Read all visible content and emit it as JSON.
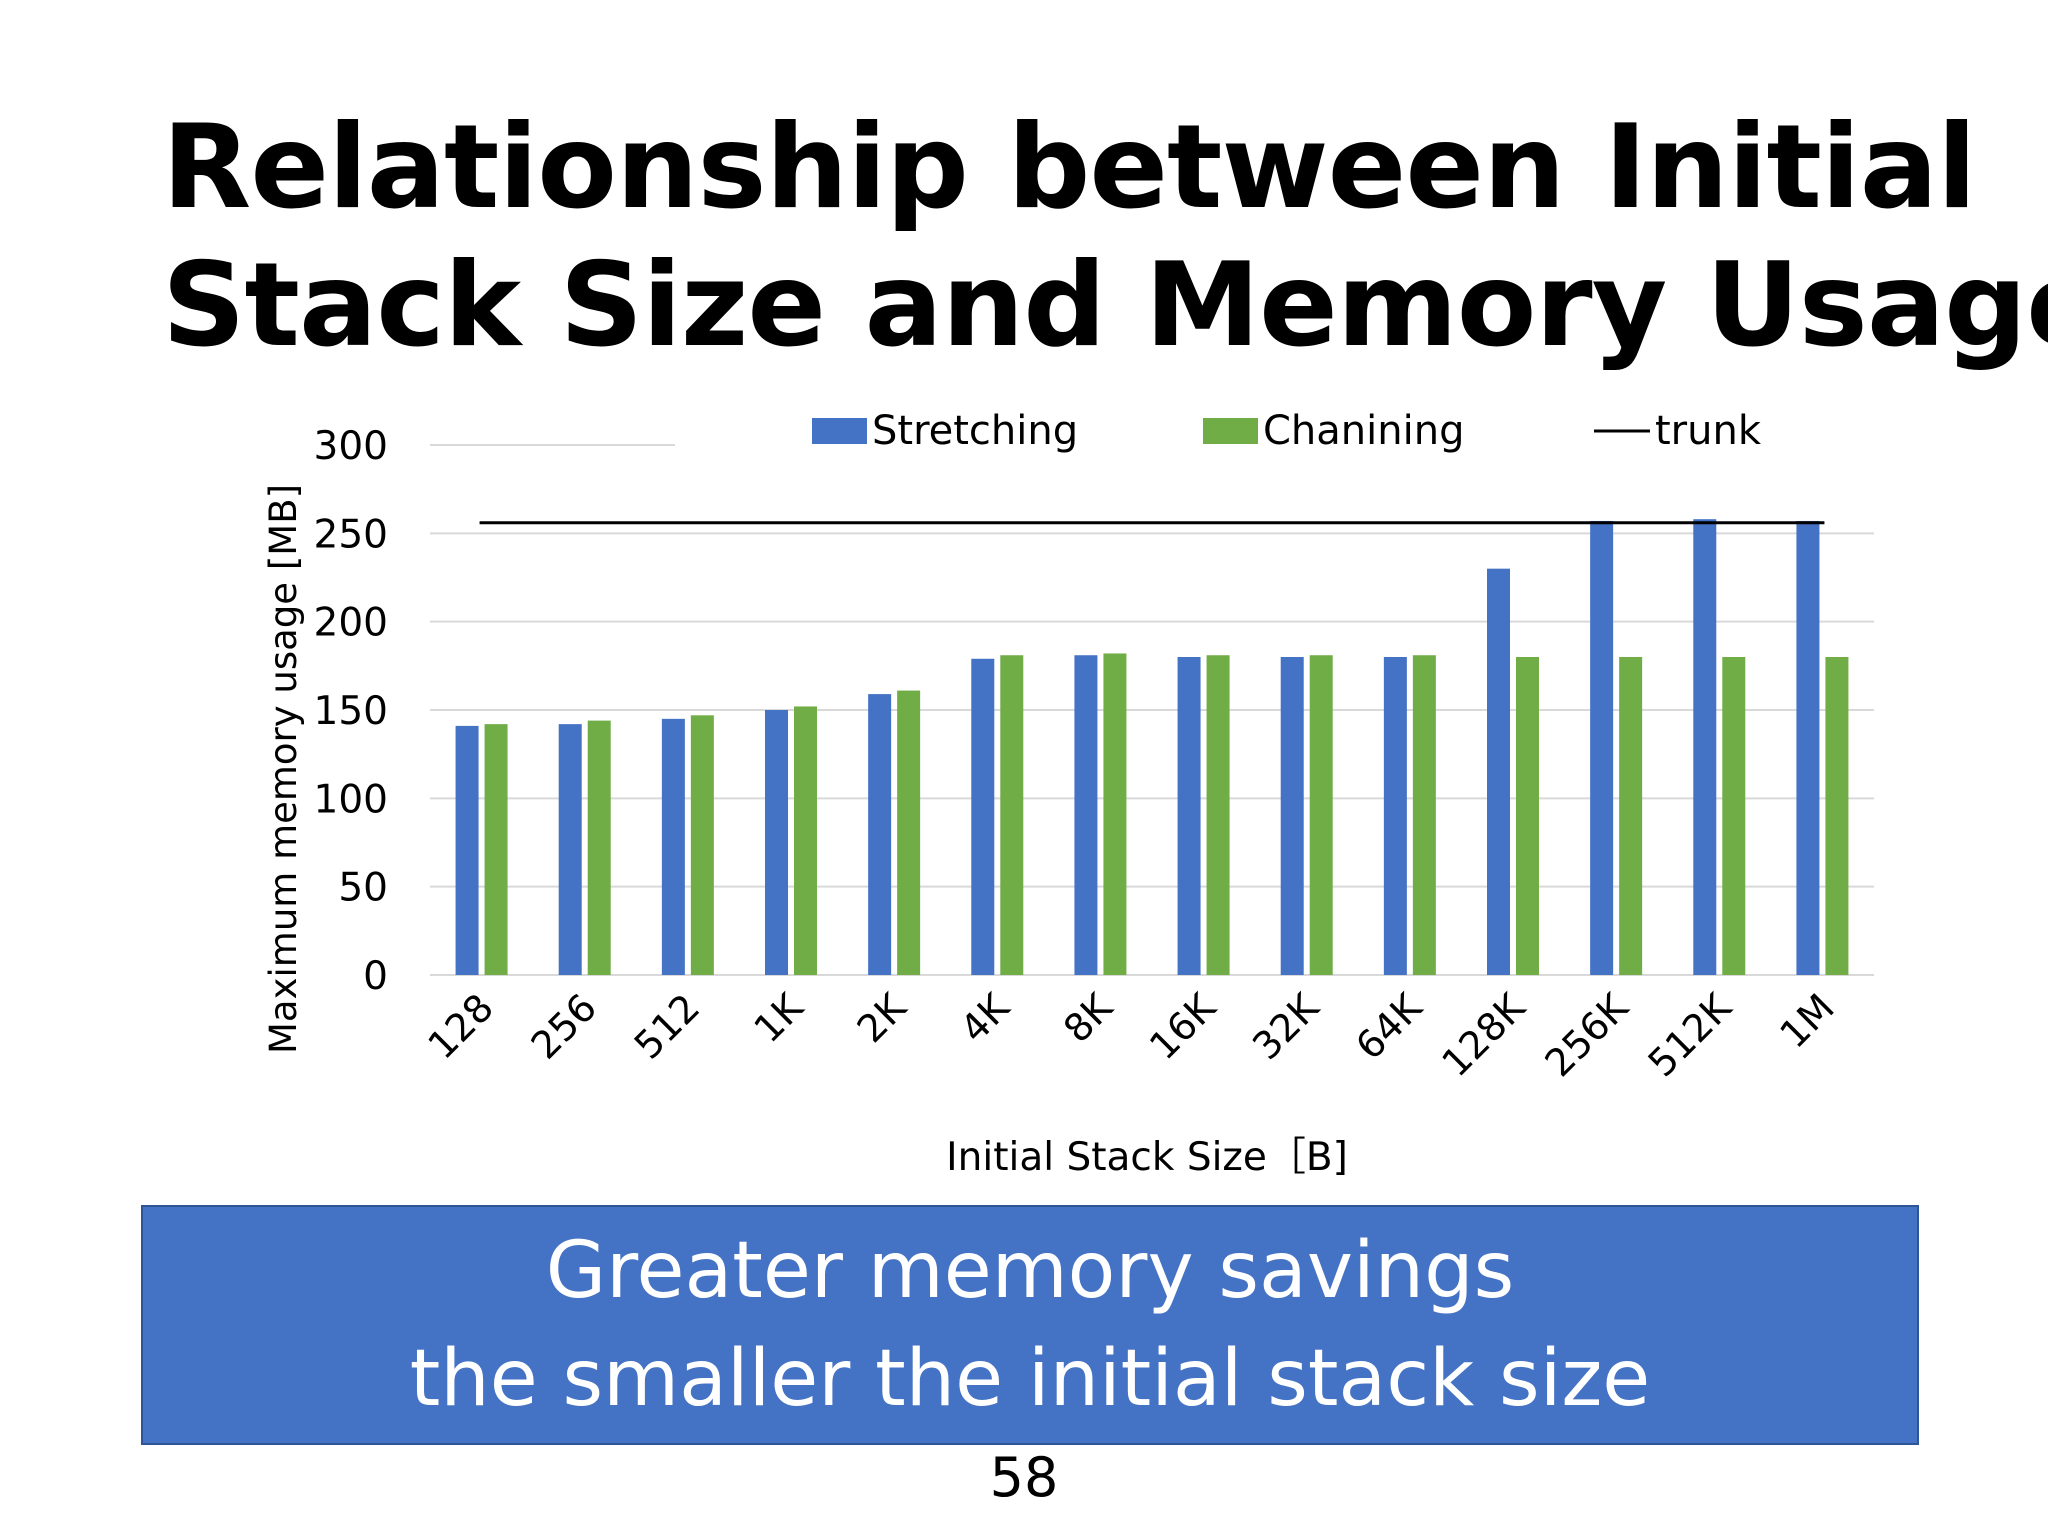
{
  "slide": {
    "title_line1": "Relationship between Initial",
    "title_line2": "Stack Size and Memory Usage",
    "callout_line1": "Greater memory savings",
    "callout_line2": "the smaller the initial stack size",
    "page_number": "58"
  },
  "chart_data": {
    "type": "bar",
    "title": "",
    "xlabel": "Initial Stack Size［B]",
    "ylabel": "Maximum memory usage [MB]",
    "ylim": [
      0,
      300
    ],
    "yticks": [
      0,
      50,
      100,
      150,
      200,
      250,
      300
    ],
    "grid": true,
    "legend_position": "top",
    "categories": [
      "128",
      "256",
      "512",
      "1K",
      "2K",
      "4K",
      "8K",
      "16K",
      "32K",
      "64K",
      "128K",
      "256K",
      "512K",
      "1M"
    ],
    "series": [
      {
        "name": "Stretching",
        "color": "#4472c4",
        "values": [
          141,
          142,
          145,
          150,
          159,
          179,
          181,
          180,
          180,
          180,
          230,
          257,
          258,
          257
        ]
      },
      {
        "name": "Chanining",
        "color": "#70ad47",
        "values": [
          142,
          144,
          147,
          152,
          161,
          181,
          182,
          181,
          181,
          181,
          180,
          180,
          180,
          180
        ]
      }
    ],
    "reference_line": {
      "name": "trunk",
      "value": 256,
      "color": "#000000"
    }
  }
}
